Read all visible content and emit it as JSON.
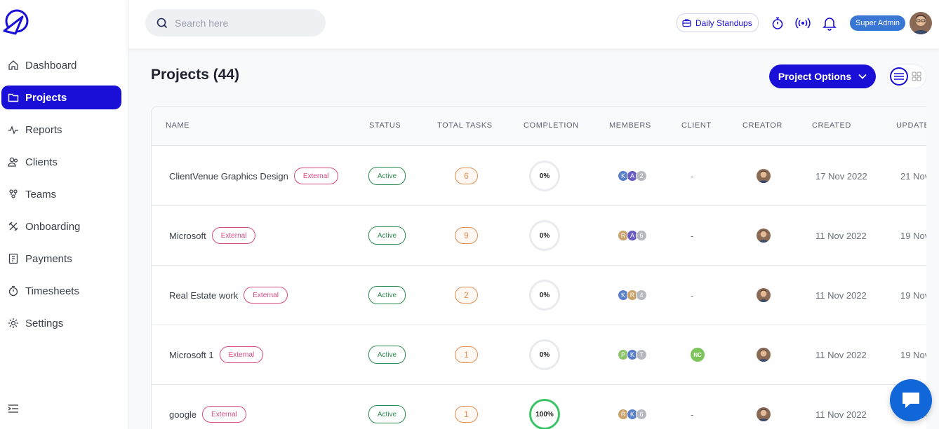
{
  "sidebar": {
    "items": [
      {
        "label": "Dashboard",
        "icon": "home-icon"
      },
      {
        "label": "Projects",
        "icon": "folder-icon",
        "active": true
      },
      {
        "label": "Reports",
        "icon": "activity-icon"
      },
      {
        "label": "Clients",
        "icon": "users-icon"
      },
      {
        "label": "Teams",
        "icon": "team-icon"
      },
      {
        "label": "Onboarding",
        "icon": "tools-icon"
      },
      {
        "label": "Payments",
        "icon": "invoice-icon"
      },
      {
        "label": "Timesheets",
        "icon": "stopwatch-icon"
      },
      {
        "label": "Settings",
        "icon": "gear-icon"
      }
    ]
  },
  "topbar": {
    "search_placeholder": "Search here",
    "standups_label": "Daily Standups",
    "role_label": "Super Admin"
  },
  "page": {
    "title": "Projects (44)",
    "options_label": "Project Options"
  },
  "table": {
    "headers": [
      "NAME",
      "STATUS",
      "TOTAL TASKS",
      "COMPLETION",
      "MEMBERS",
      "CLIENT",
      "CREATOR",
      "CREATED",
      "UPDATE"
    ],
    "rows": [
      {
        "name": "ClientVenue Graphics Design",
        "tag": "External",
        "status": "Active",
        "tasks": "6",
        "completion": "0%",
        "completion_value": 0,
        "members": [
          "K",
          "A",
          "2"
        ],
        "client": "-",
        "created": "17 Nov 2022",
        "updated": "21 Nov"
      },
      {
        "name": "Microsoft",
        "tag": "External",
        "status": "Active",
        "tasks": "9",
        "completion": "0%",
        "completion_value": 0,
        "members": [
          "R",
          "A",
          "6"
        ],
        "client": "-",
        "created": "11 Nov 2022",
        "updated": "19 Nov"
      },
      {
        "name": "Real Estate work",
        "tag": "External",
        "status": "Active",
        "tasks": "2",
        "completion": "0%",
        "completion_value": 0,
        "members": [
          "K",
          "R",
          "4"
        ],
        "client": "-",
        "created": "11 Nov 2022",
        "updated": "19 Nov"
      },
      {
        "name": "Microsoft 1",
        "tag": "External",
        "status": "Active",
        "tasks": "1",
        "completion": "0%",
        "completion_value": 0,
        "members": [
          "P",
          "K",
          "7"
        ],
        "client": "NC",
        "created": "11 Nov 2022",
        "updated": "19 Nov"
      },
      {
        "name": "google",
        "tag": "External",
        "status": "Active",
        "tasks": "1",
        "completion": "100%",
        "completion_value": 100,
        "members": [
          "R",
          "K",
          "6"
        ],
        "client": "-",
        "created": "11 Nov 2022",
        "updated": "19 Nov"
      }
    ]
  },
  "colors": {
    "accent": "#1a0fd6",
    "external": "#d64a82",
    "active": "#2d8a4e",
    "tasks": "#e08d52",
    "complete": "#3ac466"
  }
}
